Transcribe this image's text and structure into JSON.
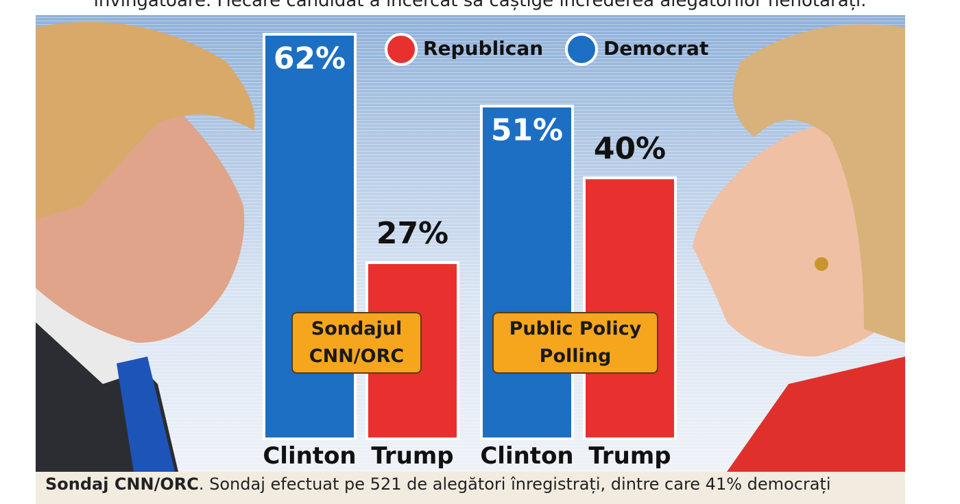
{
  "header": {
    "text": "învingătoare. Fiecare candidat a încercat să câștige încrederea alegătorilor nehotărâți."
  },
  "chart_data": {
    "type": "bar",
    "categories": [
      "Sondajul CNN/ORC",
      "Public Policy Polling"
    ],
    "series": [
      {
        "name": "Democrat",
        "bar_label": "Clinton",
        "color": "#1c6fc2",
        "values": [
          62,
          51
        ],
        "value_labels": [
          "62%",
          "51%"
        ]
      },
      {
        "name": "Republican",
        "bar_label": "Trump",
        "color": "#e8312f",
        "values": [
          27,
          40
        ],
        "value_labels": [
          "27%",
          "40%"
        ]
      }
    ]
  },
  "caption": {
    "bold": "Sondaj CNN/ORC",
    "text": ". Sondaj efectuat pe 521 de alegători înregistrați, dintre care 41% democrați"
  }
}
